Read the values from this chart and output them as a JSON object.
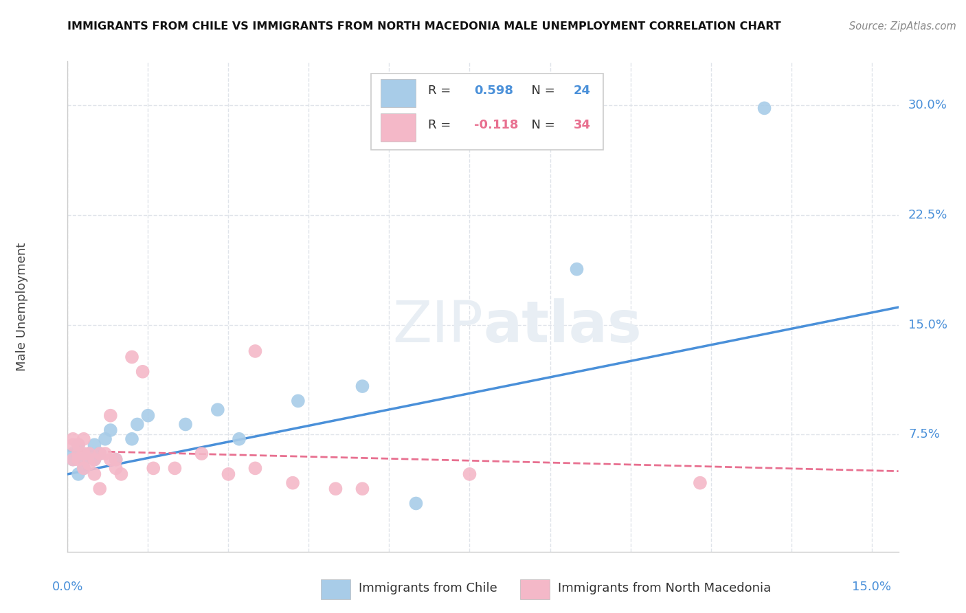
{
  "title": "IMMIGRANTS FROM CHILE VS IMMIGRANTS FROM NORTH MACEDONIA MALE UNEMPLOYMENT CORRELATION CHART",
  "source": "Source: ZipAtlas.com",
  "ylabel": "Male Unemployment",
  "xlim": [
    0.0,
    0.155
  ],
  "ylim": [
    -0.005,
    0.33
  ],
  "chile_R": 0.598,
  "chile_N": 24,
  "macedonia_R": -0.118,
  "macedonia_N": 34,
  "chile_color": "#a8cce8",
  "macedonia_color": "#f4b8c8",
  "chile_line_color": "#4a90d9",
  "macedonia_line_color": "#e87090",
  "watermark_color": "#e8eef4",
  "chile_points_x": [
    0.001,
    0.001,
    0.002,
    0.002,
    0.003,
    0.003,
    0.004,
    0.005,
    0.005,
    0.006,
    0.007,
    0.008,
    0.009,
    0.012,
    0.013,
    0.015,
    0.022,
    0.028,
    0.032,
    0.043,
    0.055,
    0.095,
    0.13,
    0.065
  ],
  "chile_points_y": [
    0.058,
    0.062,
    0.048,
    0.068,
    0.052,
    0.058,
    0.062,
    0.058,
    0.068,
    0.062,
    0.072,
    0.078,
    0.058,
    0.072,
    0.082,
    0.088,
    0.082,
    0.092,
    0.072,
    0.098,
    0.108,
    0.188,
    0.298,
    0.028
  ],
  "macedonia_points_x": [
    0.001,
    0.001,
    0.001,
    0.002,
    0.002,
    0.002,
    0.003,
    0.003,
    0.003,
    0.004,
    0.004,
    0.005,
    0.005,
    0.006,
    0.006,
    0.007,
    0.008,
    0.008,
    0.009,
    0.009,
    0.01,
    0.012,
    0.014,
    0.016,
    0.02,
    0.025,
    0.03,
    0.035,
    0.042,
    0.05,
    0.055,
    0.075,
    0.118,
    0.035
  ],
  "macedonia_points_y": [
    0.068,
    0.072,
    0.058,
    0.062,
    0.058,
    0.068,
    0.072,
    0.052,
    0.062,
    0.062,
    0.055,
    0.048,
    0.058,
    0.038,
    0.062,
    0.062,
    0.058,
    0.088,
    0.058,
    0.052,
    0.048,
    0.128,
    0.118,
    0.052,
    0.052,
    0.062,
    0.048,
    0.052,
    0.042,
    0.038,
    0.038,
    0.048,
    0.042,
    0.132
  ],
  "chile_trendline_x": [
    0.0,
    0.155
  ],
  "chile_trendline_y": [
    0.048,
    0.162
  ],
  "macedonia_trendline_x": [
    0.0,
    0.155
  ],
  "macedonia_trendline_y": [
    0.064,
    0.05
  ],
  "yticks": [
    0.0,
    0.075,
    0.15,
    0.225,
    0.3
  ],
  "ytick_labels": [
    "",
    "7.5%",
    "15.0%",
    "22.5%",
    "30.0%"
  ],
  "xtick_labels": [
    "0.0%",
    "15.0%"
  ],
  "grid_color": "#e0e4ea",
  "spine_color": "#cccccc"
}
